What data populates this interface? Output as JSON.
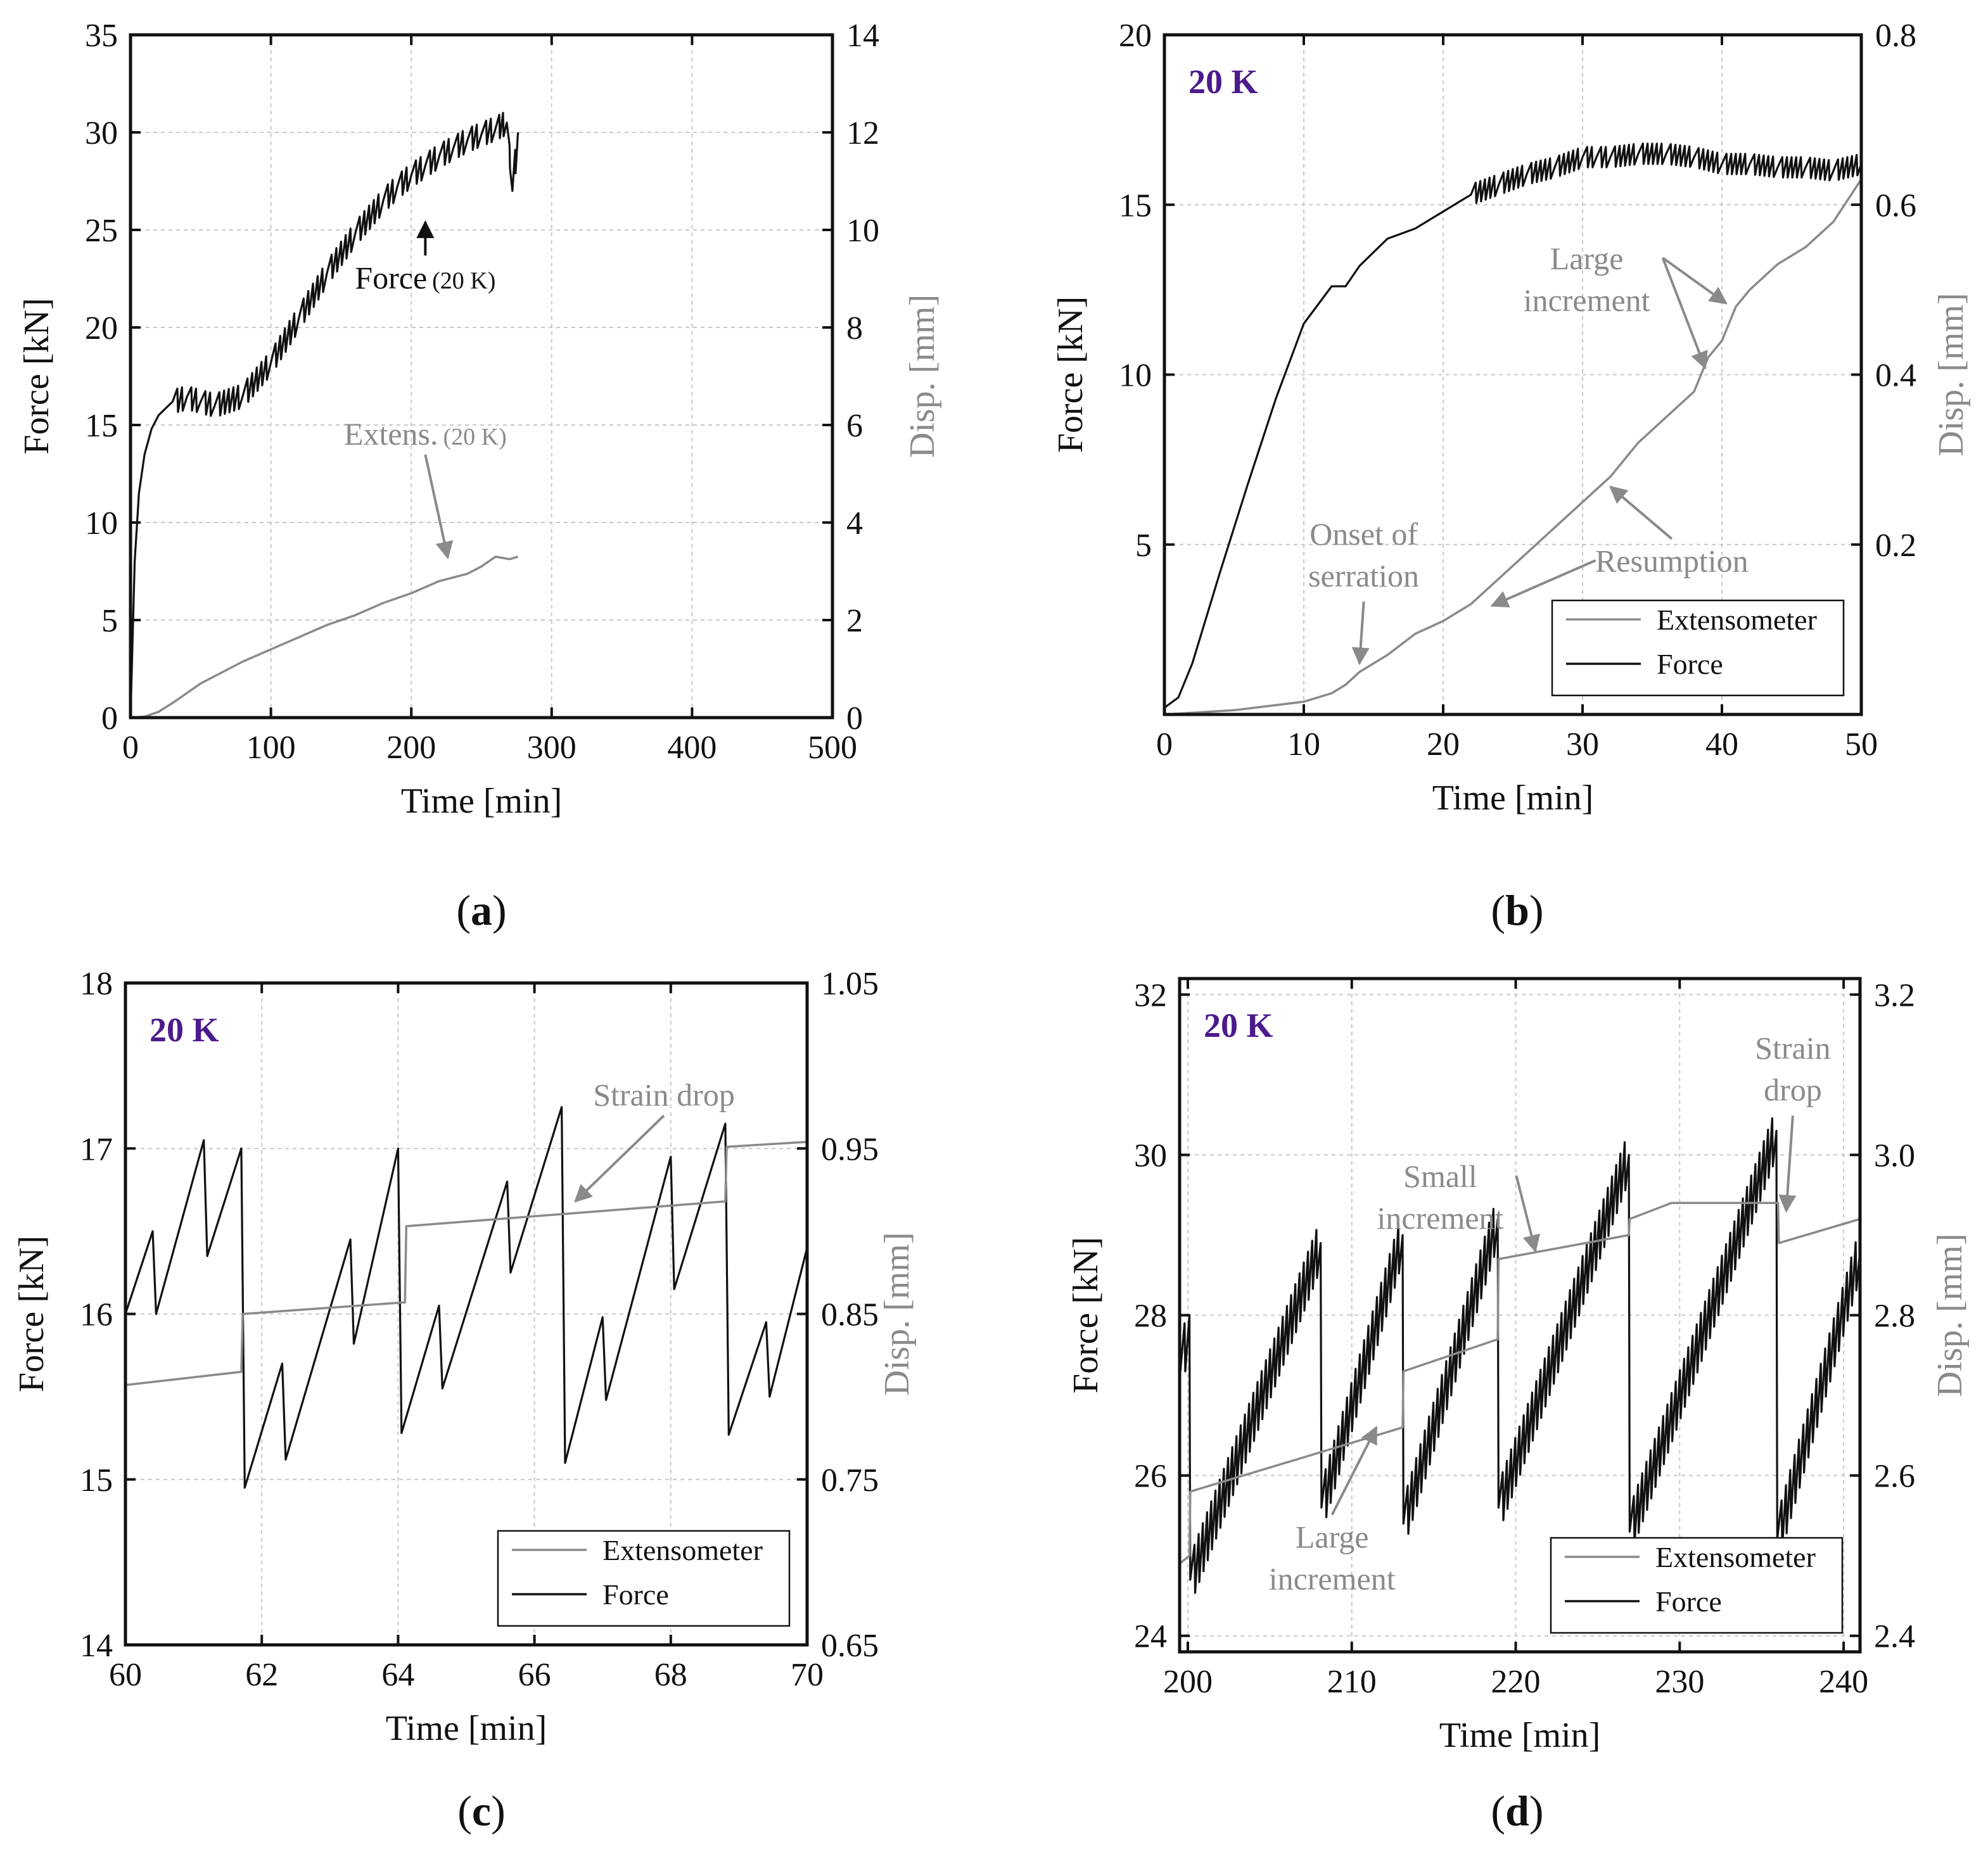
{
  "chart_data": [
    {
      "id": "a",
      "type": "line",
      "panel_label": "a",
      "title": "",
      "xlabel": "Time [min]",
      "ylabel": "Force [kN]",
      "y2label": "Disp. [mm]",
      "xlim": [
        0,
        500
      ],
      "ylim": [
        0,
        35
      ],
      "y2lim": [
        0,
        14
      ],
      "xticks": [
        0,
        100,
        200,
        300,
        400,
        500
      ],
      "yticks": [
        0,
        5,
        10,
        15,
        20,
        25,
        30,
        35
      ],
      "y2ticks": [
        0,
        2,
        4,
        6,
        8,
        10,
        12,
        14
      ],
      "series": [
        {
          "name": "Force (20 K)",
          "axis": "left",
          "color": "#111111",
          "x": [
            0,
            3,
            6,
            10,
            15,
            20,
            30,
            40,
            50,
            60,
            80,
            100,
            120,
            140,
            160,
            180,
            190,
            200,
            210,
            220,
            230,
            240,
            250,
            260,
            268,
            272,
            276
          ],
          "y": [
            0,
            8,
            11.5,
            13.5,
            14.8,
            15.5,
            16.2,
            16.4,
            16.2,
            16.0,
            16.5,
            18.2,
            20.5,
            22.8,
            24.8,
            26.5,
            27.2,
            27.8,
            28.3,
            28.8,
            29.2,
            29.6,
            29.9,
            30.2,
            30.5,
            27.0,
            30.0
          ],
          "serration_amplitude": 1.2,
          "serration_start": 30
        },
        {
          "name": "Extens.(20 K)",
          "axis": "right",
          "color": "#8a8a8a",
          "x": [
            0,
            10,
            20,
            30,
            40,
            50,
            60,
            80,
            100,
            120,
            140,
            160,
            180,
            200,
            220,
            240,
            250,
            260,
            270,
            276
          ],
          "y": [
            0,
            0.02,
            0.12,
            0.3,
            0.5,
            0.7,
            0.85,
            1.15,
            1.4,
            1.65,
            1.9,
            2.1,
            2.35,
            2.55,
            2.8,
            2.95,
            3.1,
            3.3,
            3.25,
            3.3
          ]
        }
      ],
      "annotations": [
        {
          "text": "Force",
          "small": "(20 K)",
          "color": "#111111",
          "at": [
            210,
            22
          ],
          "arrow_to": [
            210,
            25.4
          ]
        },
        {
          "text": "Extens.",
          "small": "(20 K)",
          "color": "#8a8a8a",
          "at": [
            210,
            14
          ],
          "arrow_to": [
            226,
            8.2
          ]
        }
      ]
    },
    {
      "id": "b",
      "type": "line",
      "panel_label": "b",
      "tag": "20 K",
      "xlabel": "Time [min]",
      "ylabel": "Force [kN]",
      "y2label": "Disp. [mm]",
      "xlim": [
        0,
        50
      ],
      "ylim": [
        0,
        20
      ],
      "y2lim": [
        0,
        0.8
      ],
      "xticks": [
        0,
        10,
        20,
        30,
        40,
        50
      ],
      "yticks": [
        5,
        10,
        15,
        20
      ],
      "y2ticks": [
        0.2,
        0.4,
        0.6,
        0.8
      ],
      "legend": [
        "Extensometer",
        "Force"
      ],
      "series": [
        {
          "name": "Force",
          "axis": "left",
          "color": "#111111",
          "x": [
            0,
            1,
            2,
            4,
            6,
            8,
            10,
            12,
            13,
            14,
            15,
            16,
            18,
            20,
            22,
            24,
            26,
            28,
            30,
            31,
            32,
            34,
            36,
            38,
            40,
            42,
            44,
            46,
            48,
            50
          ],
          "y": [
            0.2,
            0.5,
            1.5,
            4.2,
            6.8,
            9.3,
            11.5,
            12.6,
            12.6,
            13.2,
            13.6,
            14.0,
            14.3,
            14.8,
            15.3,
            15.6,
            15.9,
            16.1,
            16.4,
            16.4,
            16.4,
            16.5,
            16.5,
            16.4,
            16.2,
            16.2,
            16.1,
            16.1,
            16.0,
            16.2
          ],
          "serration_amplitude": 0.6,
          "serration_start": 22
        },
        {
          "name": "Extensometer",
          "axis": "right",
          "color": "#8a8a8a",
          "x": [
            0,
            5,
            10,
            12,
            13,
            14,
            16,
            18,
            20,
            22,
            24,
            26,
            28,
            30,
            32,
            34,
            36,
            38,
            39,
            40,
            41,
            42,
            44,
            46,
            48,
            50
          ],
          "y": [
            0,
            0.005,
            0.015,
            0.025,
            0.035,
            0.05,
            0.07,
            0.095,
            0.11,
            0.13,
            0.16,
            0.19,
            0.22,
            0.25,
            0.28,
            0.32,
            0.35,
            0.38,
            0.42,
            0.44,
            0.48,
            0.5,
            0.53,
            0.55,
            0.58,
            0.63
          ]
        }
      ],
      "annotations": [
        {
          "text": "Onset of",
          "text2": "serration",
          "at": [
            14.3,
            5.0
          ],
          "arrow_to": [
            14,
            1.5
          ]
        },
        {
          "text": "Resumption",
          "at": [
            36.4,
            4.2
          ],
          "arrow_to1": [
            23.5,
            3.2
          ],
          "arrow_to2": [
            32,
            6.7
          ]
        },
        {
          "text": "Large",
          "text2": "increment",
          "at": [
            30.3,
            13.1
          ],
          "arrow_to1": [
            40.3,
            12.1
          ],
          "arrow_to2": [
            38.8,
            10.2
          ]
        }
      ]
    },
    {
      "id": "c",
      "type": "line",
      "panel_label": "c",
      "tag": "20 K",
      "xlabel": "Time [min]",
      "ylabel": "Force [kN]",
      "y2label": "Disp. [mm]",
      "xlim": [
        60,
        70
      ],
      "ylim": [
        14,
        18
      ],
      "y2lim": [
        0.65,
        1.05
      ],
      "xticks": [
        60,
        62,
        64,
        66,
        68,
        70
      ],
      "yticks": [
        14,
        15,
        16,
        17,
        18
      ],
      "y2ticks": [
        0.65,
        0.75,
        0.85,
        0.95,
        1.05
      ],
      "ytick_labels": [
        "14",
        "15",
        "16",
        "17",
        "18"
      ],
      "y2tick_labels": [
        "0.65",
        "0.75",
        "0.85",
        "0.95",
        "1.05"
      ],
      "legend": [
        "Extensometer",
        "Force"
      ],
      "series": [
        {
          "name": "Force",
          "axis": "left",
          "color": "#111111",
          "x": [
            60.0,
            60.4,
            60.45,
            61.15,
            61.2,
            61.7,
            61.75,
            62.3,
            62.35,
            63.3,
            63.35,
            64.0,
            64.05,
            64.6,
            64.65,
            65.6,
            65.65,
            66.4,
            66.45,
            67.0,
            67.05,
            68.0,
            68.05,
            68.8,
            68.85,
            69.4,
            69.45,
            70.0
          ],
          "y": [
            16.0,
            16.5,
            16.0,
            17.05,
            16.35,
            17.0,
            14.95,
            15.7,
            15.12,
            16.45,
            15.82,
            17.0,
            15.28,
            16.05,
            15.55,
            16.8,
            16.25,
            17.25,
            15.1,
            15.98,
            15.48,
            16.95,
            16.15,
            17.15,
            15.27,
            15.95,
            15.5,
            16.4
          ]
        },
        {
          "name": "Extensometer",
          "axis": "right",
          "color": "#8a8a8a",
          "x": [
            60.0,
            61.7,
            61.72,
            64.1,
            64.12,
            68.8,
            68.82,
            70.0
          ],
          "y": [
            0.807,
            0.815,
            0.85,
            0.857,
            0.903,
            0.918,
            0.951,
            0.954
          ]
        }
      ],
      "annotations": [
        {
          "text": "Strain drop",
          "at": [
            67.9,
            17.26
          ],
          "arrow_to": [
            66.6,
            16.68
          ]
        }
      ]
    },
    {
      "id": "d",
      "type": "line",
      "panel_label": "d",
      "tag": "20 K",
      "xlabel": "Time [min]",
      "ylabel": "Force [kN]",
      "y2label": "Disp. [mm]",
      "xlim": [
        199.5,
        241
      ],
      "ylim": [
        23.8,
        32.2
      ],
      "y2lim": [
        2.38,
        3.22
      ],
      "xticks": [
        200,
        210,
        220,
        230,
        240
      ],
      "yticks": [
        24,
        26,
        28,
        30,
        32
      ],
      "y2ticks": [
        2.4,
        2.6,
        2.8,
        3.0,
        3.2
      ],
      "ytick_labels": [
        "24",
        "26",
        "28",
        "30",
        "32"
      ],
      "y2tick_labels": [
        "2.4",
        "2.6",
        "2.8",
        "3.0",
        "3.2"
      ],
      "legend": [
        "Extensometer",
        "Force"
      ],
      "series": [
        {
          "name": "Force",
          "axis": "left",
          "color": "#111111",
          "x": [
            199.5,
            200.1,
            200.15,
            208.1,
            208.15,
            213.1,
            213.15,
            218.9,
            218.95,
            226.9,
            226.95,
            235.9,
            235.95,
            241.0
          ],
          "y": [
            27.2,
            28.0,
            24.7,
            28.9,
            25.6,
            29.0,
            25.4,
            29.2,
            25.6,
            30.0,
            25.3,
            30.3,
            25.2,
            28.8
          ],
          "serration_amplitude": 0.6
        },
        {
          "name": "Extensometer",
          "axis": "right",
          "color": "#8a8a8a",
          "x": [
            199.5,
            200.1,
            200.15,
            213.1,
            213.15,
            218.9,
            218.95,
            226.9,
            226.95,
            229.5,
            236.0,
            236.05,
            241.0
          ],
          "y": [
            2.49,
            2.5,
            2.58,
            2.66,
            2.73,
            2.77,
            2.87,
            2.9,
            2.92,
            2.94,
            2.94,
            2.89,
            2.92
          ]
        }
      ],
      "annotations": [
        {
          "text": "Small",
          "text2": "increment",
          "at": [
            215.4,
            29.6
          ],
          "arrow_to": [
            221.2,
            28.8
          ]
        },
        {
          "text": "Large",
          "text2": "increment",
          "at": [
            208.8,
            25.1
          ],
          "arrow_to": [
            211.5,
            26.6
          ]
        },
        {
          "text": "Strain",
          "text2": "drop",
          "at": [
            236.9,
            31.2
          ],
          "arrow_to": [
            236.5,
            29.3
          ]
        }
      ]
    }
  ]
}
